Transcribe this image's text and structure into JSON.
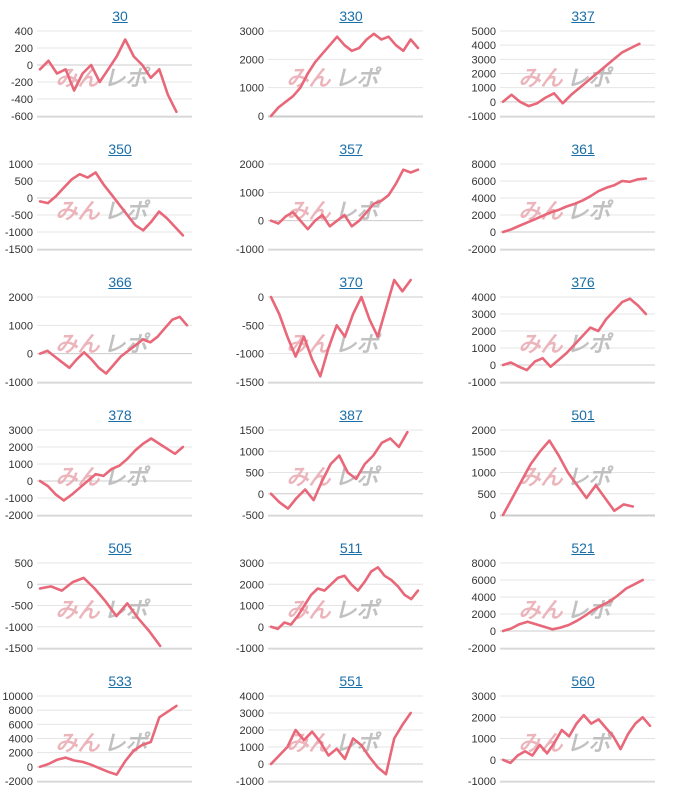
{
  "style": {
    "line_color": "#e8687a",
    "grid_color": "#e4e4e4",
    "axis_color": "#cccccc",
    "title_color": "#1a6ea8"
  },
  "watermark": {
    "part1": "みん",
    "part2": "レポ"
  },
  "chart_data": [
    {
      "type": "line",
      "title": "30",
      "ylim": [
        -600,
        400
      ],
      "yticks": [
        400,
        200,
        0,
        -200,
        -400,
        -600
      ],
      "values": [
        -50,
        50,
        -100,
        -50,
        -300,
        -100,
        0,
        -200,
        -50,
        100,
        300,
        100,
        0,
        -150,
        -50,
        -350,
        -550
      ]
    },
    {
      "type": "line",
      "title": "330",
      "ylim": [
        0,
        3000
      ],
      "yticks": [
        3000,
        2000,
        1000,
        0
      ],
      "values": [
        0,
        300,
        500,
        700,
        1000,
        1500,
        1900,
        2200,
        2500,
        2800,
        2500,
        2300,
        2400,
        2700,
        2900,
        2700,
        2800,
        2500,
        2300,
        2700,
        2400
      ]
    },
    {
      "type": "line",
      "title": "337",
      "ylim": [
        -1000,
        5000
      ],
      "yticks": [
        5000,
        4000,
        3000,
        2000,
        1000,
        0,
        -1000
      ],
      "values": [
        0,
        500,
        0,
        -300,
        -100,
        300,
        600,
        -100,
        500,
        1000,
        1500,
        2000,
        2500,
        3000,
        3500,
        3800,
        4100
      ]
    },
    {
      "type": "line",
      "title": "350",
      "ylim": [
        -1500,
        1000
      ],
      "yticks": [
        1000,
        500,
        0,
        -500,
        -1000,
        -1500
      ],
      "values": [
        -100,
        -150,
        50,
        300,
        550,
        700,
        600,
        750,
        400,
        100,
        -200,
        -500,
        -800,
        -950,
        -700,
        -400,
        -600,
        -850,
        -1100
      ]
    },
    {
      "type": "line",
      "title": "357",
      "ylim": [
        -1000,
        2000
      ],
      "yticks": [
        2000,
        1000,
        0,
        -1000
      ],
      "values": [
        0,
        -100,
        150,
        300,
        0,
        -300,
        0,
        200,
        -200,
        0,
        200,
        -200,
        0,
        300,
        600,
        700,
        900,
        1300,
        1800,
        1700,
        1800
      ]
    },
    {
      "type": "line",
      "title": "361",
      "ylim": [
        -2000,
        8000
      ],
      "yticks": [
        8000,
        6000,
        4000,
        2000,
        0,
        -2000
      ],
      "values": [
        0,
        300,
        700,
        1100,
        1500,
        1900,
        2300,
        2600,
        3000,
        3300,
        3700,
        4200,
        4800,
        5200,
        5500,
        6000,
        5900,
        6200,
        6300
      ]
    },
    {
      "type": "line",
      "title": "366",
      "ylim": [
        -1000,
        2000
      ],
      "yticks": [
        2000,
        1000,
        0,
        -1000
      ],
      "values": [
        0,
        100,
        -100,
        -300,
        -500,
        -200,
        50,
        -200,
        -500,
        -700,
        -400,
        -100,
        100,
        300,
        500,
        400,
        600,
        900,
        1200,
        1300,
        1000
      ]
    },
    {
      "type": "line",
      "title": "370",
      "ylim": [
        -1500,
        0
      ],
      "yticks": [
        0,
        -500,
        -1000,
        -1500
      ],
      "values": [
        0,
        -300,
        -700,
        -1050,
        -700,
        -1100,
        -1400,
        -900,
        -500,
        -700,
        -300,
        0,
        -400,
        -700,
        -200,
        300,
        100,
        300
      ]
    },
    {
      "type": "line",
      "title": "376",
      "ylim": [
        -1000,
        4000
      ],
      "yticks": [
        4000,
        3000,
        2000,
        1000,
        0,
        -1000
      ],
      "values": [
        0,
        150,
        -100,
        -300,
        200,
        400,
        -100,
        300,
        700,
        1200,
        1700,
        2200,
        2000,
        2700,
        3200,
        3700,
        3900,
        3500,
        3000
      ]
    },
    {
      "type": "line",
      "title": "378",
      "ylim": [
        -2000,
        3000
      ],
      "yticks": [
        3000,
        2000,
        1000,
        0,
        -1000,
        -2000
      ],
      "values": [
        0,
        -300,
        -800,
        -1150,
        -800,
        -400,
        0,
        400,
        300,
        700,
        900,
        1300,
        1800,
        2200,
        2500,
        2200,
        1900,
        1600,
        2000
      ]
    },
    {
      "type": "line",
      "title": "387",
      "ylim": [
        -500,
        1500
      ],
      "yticks": [
        1500,
        1000,
        500,
        0,
        -500
      ],
      "values": [
        0,
        -200,
        -350,
        -100,
        100,
        -150,
        300,
        700,
        900,
        500,
        350,
        700,
        900,
        1200,
        1300,
        1100,
        1450
      ]
    },
    {
      "type": "line",
      "title": "501",
      "ylim": [
        0,
        2000
      ],
      "yticks": [
        2000,
        1500,
        1000,
        500,
        0
      ],
      "values": [
        0,
        400,
        800,
        1200,
        1500,
        1750,
        1400,
        1000,
        700,
        400,
        700,
        400,
        100,
        250,
        200
      ]
    },
    {
      "type": "line",
      "title": "505",
      "ylim": [
        -1500,
        500
      ],
      "yticks": [
        500,
        0,
        -500,
        -1000,
        -1500
      ],
      "values": [
        -100,
        -50,
        -150,
        50,
        150,
        -100,
        -400,
        -750,
        -450,
        -800,
        -1100,
        -1450
      ]
    },
    {
      "type": "line",
      "title": "511",
      "ylim": [
        -1000,
        3000
      ],
      "yticks": [
        3000,
        2000,
        1000,
        0,
        -1000
      ],
      "values": [
        0,
        -100,
        200,
        100,
        500,
        1000,
        1500,
        1800,
        1700,
        2000,
        2300,
        2400,
        2000,
        1700,
        2100,
        2600,
        2800,
        2400,
        2200,
        1900,
        1500,
        1300,
        1700
      ]
    },
    {
      "type": "line",
      "title": "521",
      "ylim": [
        -2000,
        8000
      ],
      "yticks": [
        8000,
        6000,
        4000,
        2000,
        0,
        -2000
      ],
      "values": [
        0,
        300,
        800,
        1100,
        800,
        500,
        200,
        400,
        700,
        1200,
        1800,
        2500,
        3000,
        3500,
        4200,
        5000,
        5500,
        6000
      ]
    },
    {
      "type": "line",
      "title": "533",
      "ylim": [
        -2000,
        10000
      ],
      "yticks": [
        10000,
        8000,
        6000,
        4000,
        2000,
        0,
        -2000
      ],
      "values": [
        0,
        400,
        1000,
        1300,
        900,
        700,
        300,
        -200,
        -700,
        -1100,
        800,
        2300,
        3100,
        3500,
        7000,
        7800,
        8600
      ]
    },
    {
      "type": "line",
      "title": "551",
      "ylim": [
        -1000,
        4000
      ],
      "yticks": [
        4000,
        3000,
        2000,
        1000,
        0,
        -1000
      ],
      "values": [
        0,
        500,
        1000,
        2000,
        1400,
        1900,
        1300,
        500,
        900,
        300,
        1500,
        1100,
        400,
        -200,
        -600,
        1500,
        2300,
        3000
      ]
    },
    {
      "type": "line",
      "title": "560",
      "ylim": [
        -1000,
        3000
      ],
      "yticks": [
        3000,
        2000,
        1000,
        0,
        -1000
      ],
      "values": [
        0,
        -150,
        200,
        400,
        200,
        700,
        300,
        800,
        1400,
        1100,
        1700,
        2100,
        1700,
        1900,
        1500,
        1100,
        500,
        1200,
        1700,
        2000,
        1600
      ]
    }
  ]
}
